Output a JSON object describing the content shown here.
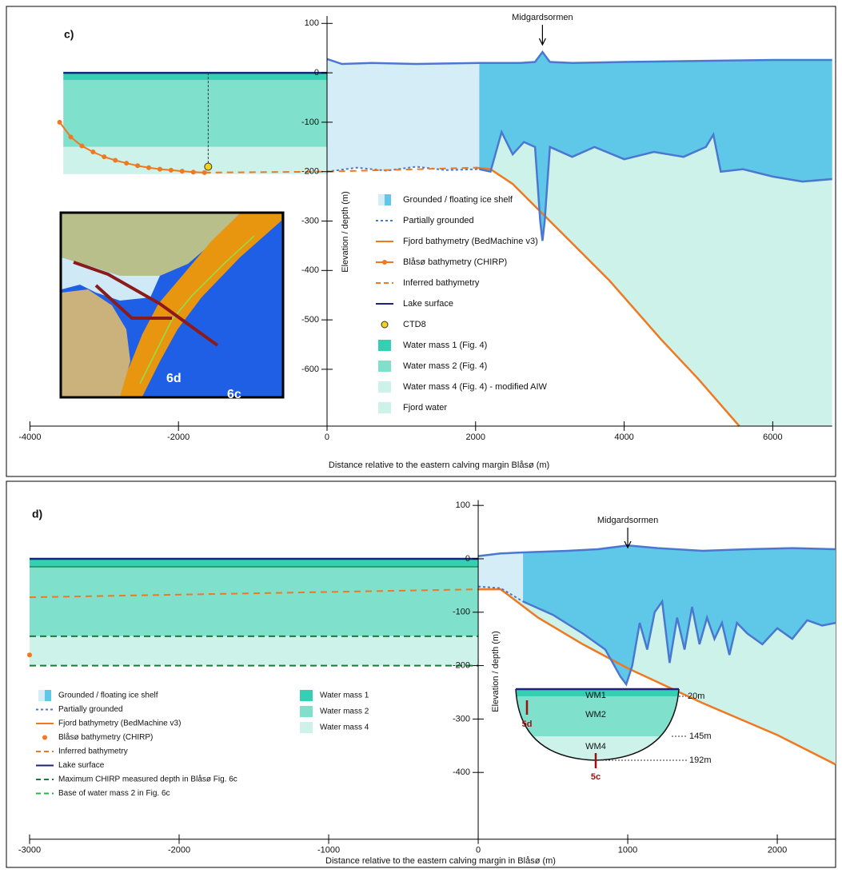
{
  "chart_data": [
    {
      "type": "profile",
      "title": "c)",
      "xlabel": "Distance relative to the eastern calving margin Blåsø (m)",
      "ylabel": "Elevation / depth (m)",
      "xlim": [
        -4000,
        6800
      ],
      "ylim": [
        -715,
        115
      ],
      "xticks": [
        -4000,
        -2000,
        0,
        2000,
        4000,
        6000
      ],
      "yticks": [
        100,
        0,
        -100,
        -200,
        -300,
        -400,
        -500,
        -600
      ],
      "annotation": {
        "text": "Midgardsormen",
        "x": 2900
      },
      "lake": {
        "x": [
          -3550,
          0
        ],
        "layers": [
          0,
          -15,
          -150,
          -205
        ]
      },
      "ice_surface": {
        "x": [
          0,
          200,
          600,
          1200,
          2050,
          2600,
          2800,
          2900,
          3000,
          3300,
          4000,
          5000,
          6000,
          6800
        ],
        "values": [
          28,
          18,
          20,
          18,
          20,
          20,
          22,
          42,
          22,
          20,
          22,
          24,
          26,
          26
        ]
      },
      "partial": {
        "x": [
          0,
          400,
          800,
          1200,
          1600,
          2050
        ],
        "values": [
          -200,
          -192,
          -198,
          -190,
          -197,
          -195
        ]
      },
      "ice_base": {
        "x": [
          2050,
          2200,
          2350,
          2500,
          2650,
          2800,
          2870,
          2900,
          2930,
          3000,
          3300,
          3600,
          4000,
          4400,
          4800,
          5100,
          5200,
          5300,
          5600,
          6000,
          6400,
          6800
        ],
        "values": [
          -195,
          -200,
          -120,
          -165,
          -140,
          -150,
          -300,
          -340,
          -300,
          -150,
          -170,
          -150,
          -175,
          -160,
          -170,
          -150,
          -125,
          -200,
          -195,
          -210,
          -220,
          -215
        ]
      },
      "fjord_bathymetry": {
        "x": [
          2000,
          2200,
          2500,
          2800,
          3200,
          3800,
          4500,
          5000,
          5550
        ],
        "values": [
          -192,
          -195,
          -225,
          -270,
          -330,
          -420,
          -540,
          -620,
          -715
        ]
      },
      "chirp": {
        "x": [
          -3600,
          -3450,
          -3300,
          -3150,
          -3000,
          -2850,
          -2700,
          -2550,
          -2400,
          -2250,
          -2100,
          -1950,
          -1800,
          -1650
        ],
        "values": [
          -100,
          -130,
          -148,
          -160,
          -170,
          -177,
          -183,
          -188,
          -192,
          -195,
          -197,
          -199,
          -201,
          -202
        ]
      },
      "inferred": {
        "x": [
          -1650,
          0,
          2000
        ],
        "values": [
          -202,
          -200,
          -192
        ]
      },
      "ctd": {
        "x": -1600,
        "value": -190
      },
      "legend": [
        "Grounded / floating ice shelf",
        "Partially grounded",
        "Fjord bathymetry (BedMachine v3)",
        "Blåsø bathymetry (CHIRP)",
        "Inferred bathymetry",
        "Lake surface",
        "CTD8",
        "Water mass 1 (Fig. 4)",
        "Water mass 2 (Fig. 4)",
        "Water mass 4 (Fig. 4) - modified AIW",
        "Fjord water"
      ],
      "inset_labels": [
        "6d",
        "6c"
      ]
    },
    {
      "type": "profile",
      "title": "d)",
      "xlabel": "Distance relative to the eastern calving margin in Blåsø (m)",
      "ylabel": "Elevation / depth (m)",
      "xlim": [
        -3000,
        2390
      ],
      "ylim": [
        -525,
        110
      ],
      "xticks": [
        -3000,
        -2000,
        -1000,
        0,
        1000,
        2000
      ],
      "yticks": [
        100,
        0,
        -100,
        -200,
        -300,
        -400
      ],
      "annotation": {
        "text": "Midgardsormen",
        "x": 1000
      },
      "lake": {
        "x": [
          -3000,
          0
        ],
        "layers": [
          0,
          -15,
          -145,
          -200
        ]
      },
      "ice_surface": {
        "x": [
          0,
          150,
          300,
          600,
          800,
          1000,
          1200,
          1500,
          1800,
          2100,
          2390
        ],
        "values": [
          5,
          10,
          12,
          15,
          18,
          25,
          20,
          15,
          18,
          20,
          18
        ]
      },
      "partial": {
        "x": [
          0,
          150,
          300
        ],
        "values": [
          -52,
          -55,
          -80
        ]
      },
      "ice_base": {
        "x": [
          300,
          500,
          700,
          850,
          950,
          990,
          1030,
          1080,
          1130,
          1180,
          1230,
          1280,
          1330,
          1380,
          1430,
          1480,
          1530,
          1580,
          1630,
          1680,
          1730,
          1800,
          1900,
          2000,
          2100,
          2200,
          2300,
          2390
        ],
        "values": [
          -80,
          -105,
          -140,
          -170,
          -220,
          -235,
          -200,
          -120,
          -170,
          -100,
          -80,
          -195,
          -110,
          -170,
          -90,
          -160,
          -110,
          -150,
          -120,
          -180,
          -120,
          -140,
          -160,
          -130,
          -150,
          -115,
          -125,
          -120
        ]
      },
      "fjord_bathymetry": {
        "x": [
          0,
          150,
          400,
          700,
          1000,
          1500,
          2000,
          2390
        ],
        "values": [
          -57,
          -57,
          -110,
          -160,
          -205,
          -270,
          -330,
          -385
        ]
      },
      "chirp": {
        "x": [
          -3000
        ],
        "values": [
          -180
        ]
      },
      "inferred": {
        "x": [
          -3000,
          0,
          150
        ],
        "values": [
          -72,
          -57,
          -57
        ]
      },
      "chirp_max_depth": -200,
      "wm2_base": -145,
      "legend": [
        "Grounded / floating ice shelf",
        "Partially grounded",
        "Fjord bathymetry (BedMachine v3)",
        "Blåsø bathymetry (CHIRP)",
        "Inferred bathymetry",
        "Lake surface",
        "Maximum CHIRP measured depth in Blåsø Fig. 6c",
        "Base of water mass 2 in Fig. 6c",
        "Water mass 1",
        "Water mass 2",
        "Water mass 4"
      ],
      "inset_labels": [
        "WM1",
        "WM2",
        "WM4",
        "5d",
        "5c",
        "20m",
        "145m",
        "192m"
      ]
    }
  ]
}
